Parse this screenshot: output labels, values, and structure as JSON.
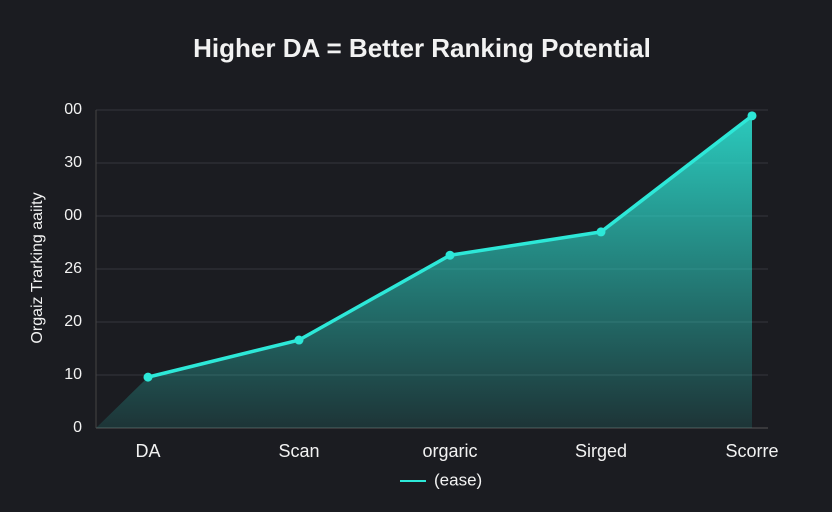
{
  "chart_data": {
    "type": "area",
    "title": "Higher DA = Better Ranking Potential",
    "y_label": "Orgaiz Trarking aaiity",
    "categories": [
      "DA",
      "Scan",
      "orgaric",
      "Sirged",
      "Scorre"
    ],
    "series": [
      {
        "name": "(ease)",
        "color": "#2de8d8",
        "values": [
          9.6,
          16.6,
          32.6,
          37,
          58.9
        ]
      }
    ],
    "ylim": [
      0,
      60
    ],
    "yticks": [
      0,
      10,
      20,
      {
        "value": 30,
        "label": "26"
      },
      {
        "value": 40,
        "label": "00"
      },
      {
        "value": 50,
        "label": "30"
      },
      {
        "value": 60,
        "label": "00"
      }
    ],
    "grid": true
  }
}
